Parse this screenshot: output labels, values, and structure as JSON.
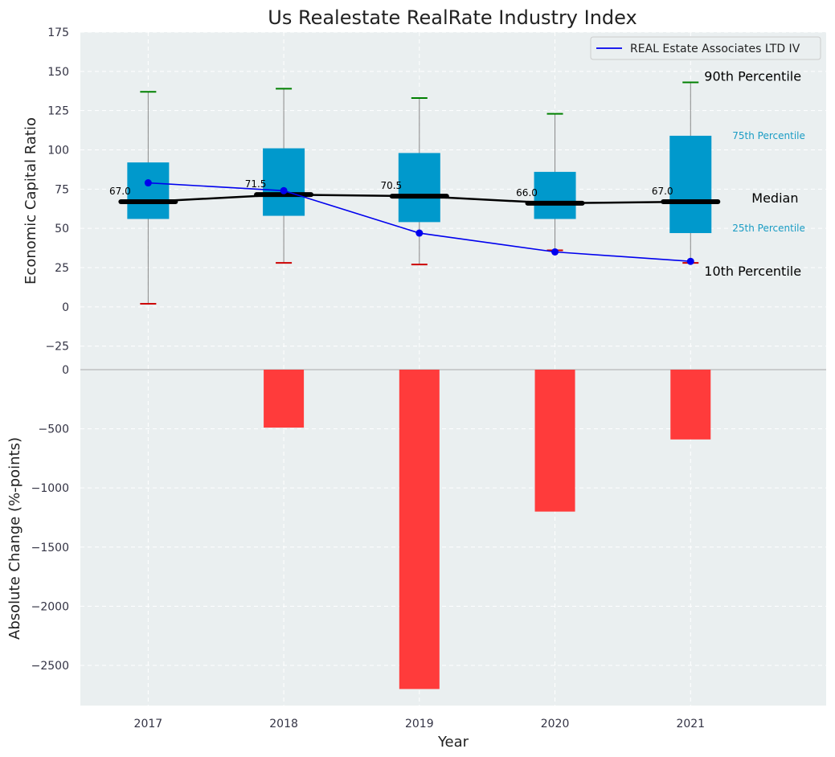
{
  "chart_data": [
    {
      "type": "box",
      "title": "Us Realestate RealRate Industry Index",
      "ylabel": "Economic Capital Ratio",
      "ylim": [
        -40,
        175
      ],
      "yticks": [
        175,
        150,
        125,
        100,
        75,
        50,
        25,
        0,
        -25
      ],
      "ytick_labels": [
        "175",
        "150",
        "125",
        "100",
        "75",
        "50",
        "25",
        "0",
        "−25"
      ],
      "categories": [
        "2017",
        "2018",
        "2019",
        "2020",
        "2021"
      ],
      "p10": [
        2,
        28,
        27,
        36,
        28
      ],
      "p25": [
        56,
        58,
        54,
        56,
        47
      ],
      "median": [
        67.0,
        71.5,
        70.5,
        66.0,
        67.0
      ],
      "median_labels": [
        "67.0",
        "71.5",
        "70.5",
        "66.0",
        "67.0"
      ],
      "p75": [
        92,
        101,
        98,
        86,
        109
      ],
      "p90": [
        137,
        139,
        133,
        123,
        143
      ],
      "company_series": {
        "name": "REAL Estate Associates LTD IV",
        "values": [
          79,
          74,
          47,
          35,
          29
        ]
      },
      "annotations": {
        "p90": "90th Percentile",
        "p75": "75th Percentile",
        "median": "Median",
        "p25": "25th Percentile",
        "p10": "10th Percentile"
      },
      "legend_placement": "top-right",
      "grid": true
    },
    {
      "type": "bar",
      "ylabel": "Absolute Change (%-points)",
      "xlabel": "Year",
      "categories": [
        "2017",
        "2018",
        "2019",
        "2020",
        "2021"
      ],
      "values": [
        0,
        -490,
        -2700,
        -1200,
        -590
      ],
      "ylim": [
        -2840,
        0
      ],
      "yticks": [
        0,
        -500,
        -1000,
        -1500,
        -2000,
        -2500
      ],
      "ytick_labels": [
        "0",
        "−500",
        "−1000",
        "−1500",
        "−2000",
        "−2500"
      ],
      "grid": true
    }
  ],
  "colors": {
    "box": "#0099cc",
    "median": "#000000",
    "company": "#0000ee",
    "p90_cap": "#008000",
    "p10_cap": "#cc0000",
    "bar": "#ff3b3b",
    "plot_bg": "#eaeff0",
    "grid": "#ffffff"
  }
}
